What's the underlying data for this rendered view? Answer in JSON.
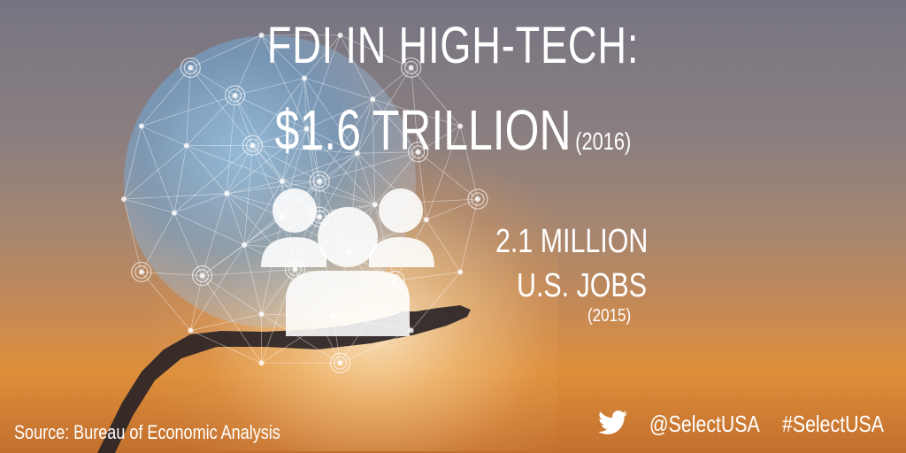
{
  "headline": {
    "line1": "FDI IN HIGH-TECH:",
    "amount": "$1.6 TRILLION",
    "amount_year": "(2016)"
  },
  "jobs": {
    "count": "2.1 MILLION",
    "label": "U.S. JOBS",
    "year": "(2015)"
  },
  "footer": {
    "source": "Source: Bureau of Economic Analysis",
    "handle": "@SelectUSA",
    "hashtag": "#SelectUSA"
  },
  "icons": [
    "people-icon",
    "twitter-icon",
    "globe-network",
    "hand"
  ],
  "colors": {
    "text": "#ffffff",
    "sky_top": "#767482",
    "sunset": "#de8f3a"
  }
}
